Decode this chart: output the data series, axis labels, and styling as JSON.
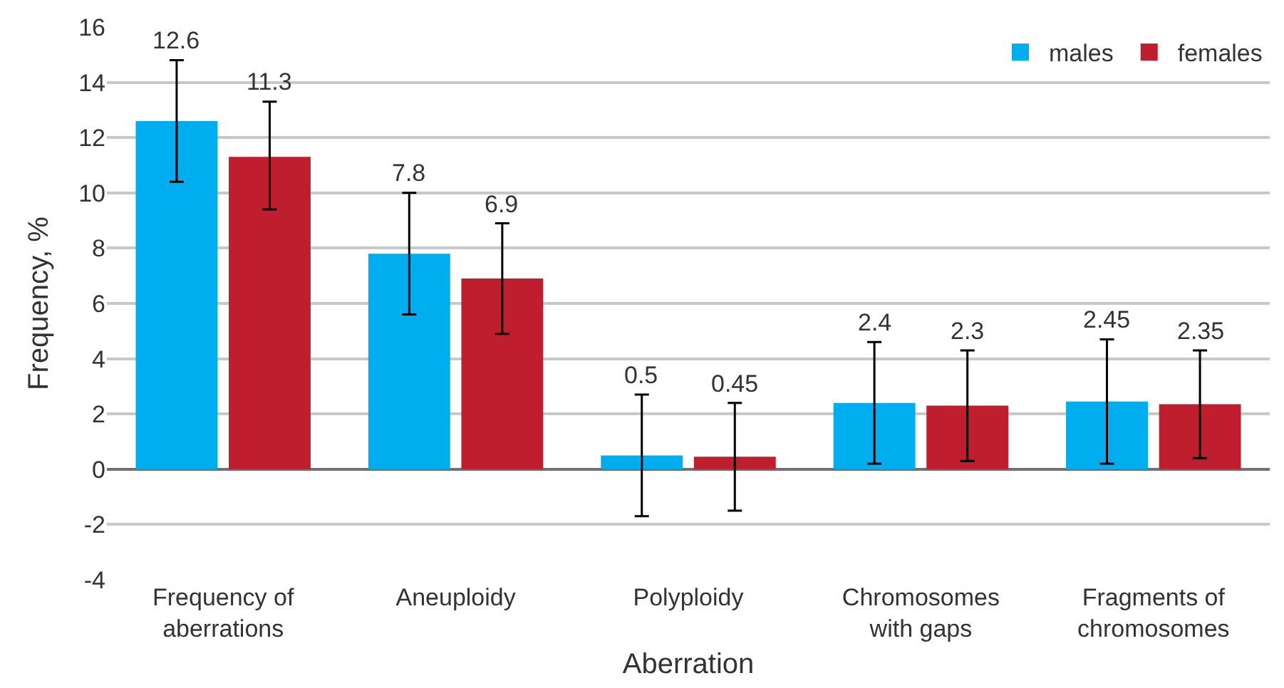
{
  "chart_data": {
    "type": "bar",
    "xlabel": "Aberration",
    "ylabel": "Frequency, %",
    "categories": [
      "Frequency of\naberrations",
      "Aneuploidy",
      "Polyploidy",
      "Chromosomes\nwith gaps",
      "Fragments of\nchromosomes"
    ],
    "series": [
      {
        "name": "males",
        "color": "#00aeef",
        "values": [
          12.6,
          7.8,
          0.5,
          2.4,
          2.45
        ],
        "errors": [
          [
            10.4,
            14.8
          ],
          [
            5.6,
            10.0
          ],
          [
            -1.7,
            2.7
          ],
          [
            0.2,
            4.6
          ],
          [
            0.2,
            4.7
          ]
        ]
      },
      {
        "name": "females",
        "color": "#be1e2d",
        "values": [
          11.3,
          6.9,
          0.45,
          2.3,
          2.35
        ],
        "errors": [
          [
            9.4,
            13.3
          ],
          [
            4.9,
            8.9
          ],
          [
            -1.5,
            2.4
          ],
          [
            0.3,
            4.3
          ],
          [
            0.4,
            4.3
          ]
        ]
      }
    ],
    "ylim": [
      -4,
      16
    ],
    "yticks": [
      -4,
      -2,
      0,
      2,
      4,
      6,
      8,
      10,
      12,
      14,
      16
    ],
    "grid": "y",
    "legend": "top right",
    "data_labels": true
  }
}
